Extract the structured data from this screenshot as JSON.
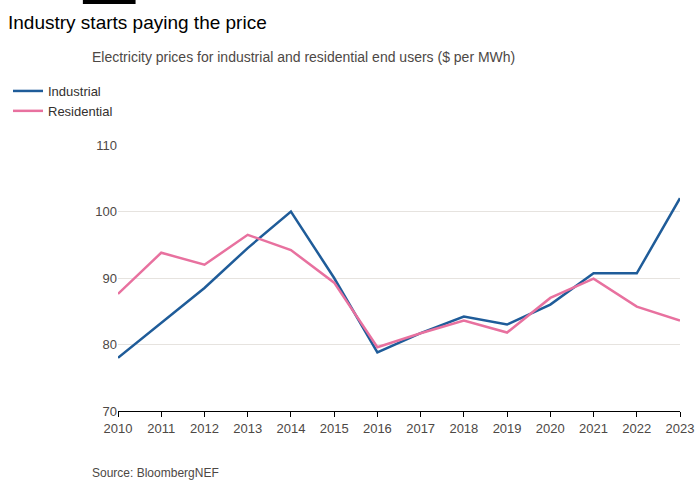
{
  "chart_data": {
    "type": "line",
    "title": "Industry starts paying the price",
    "subtitle": "Electricity prices for industrial and residential end users ($ per MWh)",
    "source": "Source: BloombergNEF",
    "x": [
      2010,
      2011,
      2012,
      2013,
      2014,
      2015,
      2016,
      2017,
      2018,
      2019,
      2020,
      2021,
      2022,
      2023
    ],
    "series": [
      {
        "name": "Industrial",
        "color": "#1f5c99",
        "values": [
          78,
          83.3,
          88.5,
          94.5,
          100,
          90,
          78.8,
          81.7,
          84.2,
          83,
          86,
          90.7,
          90.7,
          102
        ]
      },
      {
        "name": "Residential",
        "color": "#e8719f",
        "values": [
          87.6,
          93.8,
          92,
          96.5,
          94.2,
          89.3,
          79.6,
          81.7,
          83.6,
          81.8,
          87,
          89.9,
          85.7,
          83.6
        ]
      }
    ],
    "xlim": [
      2010,
      2023
    ],
    "xticks": [
      2010,
      2011,
      2012,
      2013,
      2014,
      2015,
      2016,
      2017,
      2018,
      2019,
      2020,
      2021,
      2022,
      2023
    ],
    "ylim": [
      70,
      110
    ],
    "yticks": [
      70,
      80,
      90,
      100,
      110
    ],
    "grid": true,
    "legend": "top-left"
  }
}
